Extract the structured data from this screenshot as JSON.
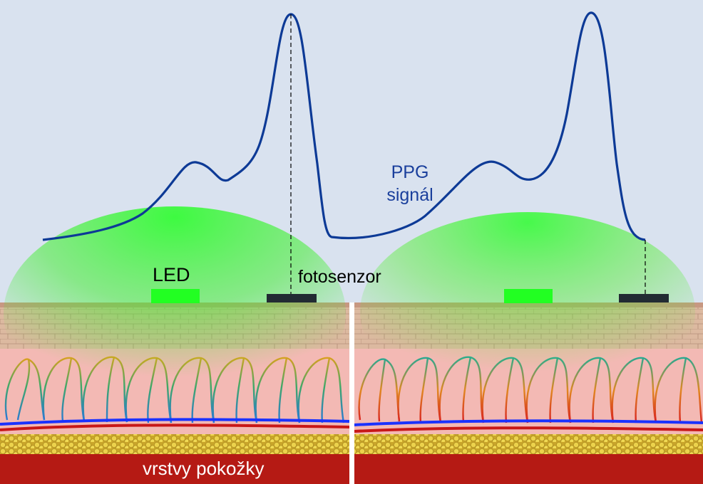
{
  "labels": {
    "led": "LED",
    "sensor": "fotosenzor",
    "signal_line1": "PPG",
    "signal_line2": "signál",
    "skin": "vrstvy pokožky"
  },
  "colors": {
    "background": "#d9e2ef",
    "signal": "#0d3a96",
    "led_light": "#22ff22",
    "sensor": "#222b33",
    "epidermis": "#d9b8a2",
    "dermis": "#f3b9b4",
    "fat": "#e2c43a",
    "muscle": "#b51a14",
    "vein": "#1a32ff",
    "artery": "#c81818"
  },
  "panels": [
    {
      "name": "left",
      "state": "signal-peak"
    },
    {
      "name": "right",
      "state": "signal-trough"
    }
  ]
}
